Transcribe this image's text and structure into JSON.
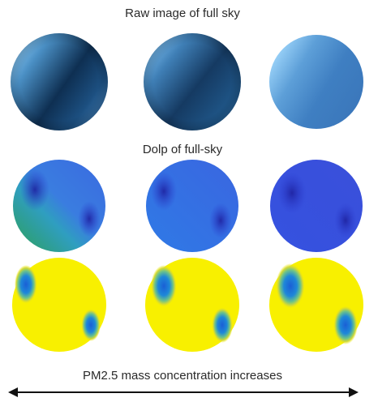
{
  "titles": {
    "raw": "Raw image of full sky",
    "dolp": "Dolp of full-sky",
    "pm": "PM2.5 mass concentration increases"
  },
  "icons": {
    "arrow": "double-headed-arrow-icon"
  },
  "colors": {
    "raw_dark": "#0d2d50",
    "raw_light": "#8fd0ff",
    "dolp_low": "#2632c8",
    "dolp_high": "#2ea66a",
    "aop_field": "#f8f000",
    "aop_spot": "#1260d8"
  }
}
